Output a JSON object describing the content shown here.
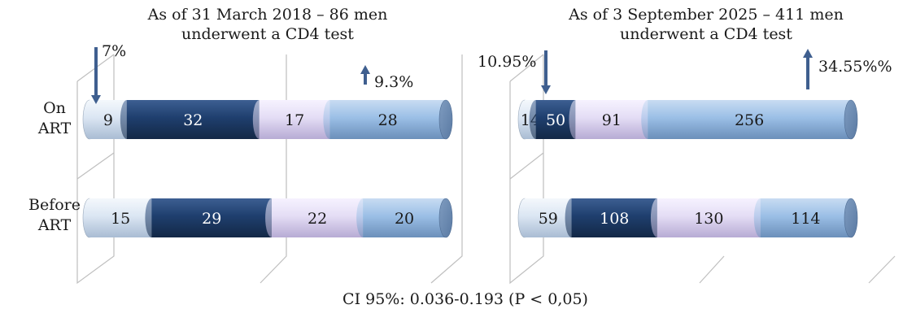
{
  "chart_data": [
    {
      "type": "bar",
      "orientation": "horizontal",
      "stacked": true,
      "style": "3d-cylinder",
      "title": [
        "As of 31 March 2018 – 86 men",
        "underwent a CD4 test"
      ],
      "categories": [
        "On ART",
        "Before ART"
      ],
      "series": [
        {
          "values": [
            9,
            15
          ]
        },
        {
          "values": [
            32,
            29
          ]
        },
        {
          "values": [
            17,
            22
          ]
        },
        {
          "values": [
            28,
            20
          ]
        }
      ],
      "annotations": [
        {
          "text": "7%",
          "arrow": "down"
        },
        {
          "text": "9.3%",
          "arrow": "up"
        }
      ]
    },
    {
      "type": "bar",
      "orientation": "horizontal",
      "stacked": true,
      "style": "3d-cylinder",
      "title": [
        "As of 3 September 2025 – 411 men",
        "underwent a CD4 test"
      ],
      "categories": [
        "On ART",
        "Before ART"
      ],
      "series": [
        {
          "values": [
            14,
            59
          ]
        },
        {
          "values": [
            50,
            108
          ]
        },
        {
          "values": [
            91,
            130
          ]
        },
        {
          "values": [
            256,
            114
          ]
        }
      ],
      "annotations": [
        {
          "text": "10.95%",
          "arrow": "down"
        },
        {
          "text": "34.55%%",
          "arrow": "up"
        }
      ]
    }
  ],
  "category_labels": [
    [
      "On",
      "ART"
    ],
    [
      "Before",
      "ART"
    ]
  ],
  "footnote": "CI 95%: 0.036-0.193 (P < 0,05)",
  "colors": {
    "segments": [
      "#dbe6f3",
      "#1f3f6e",
      "#e4ddf5",
      "#9bbfe6"
    ],
    "arrow": "#3f5f8f",
    "text_light": "#ffffff",
    "text_dark": "#1a1a1a",
    "grid": "#bfbfbf"
  }
}
